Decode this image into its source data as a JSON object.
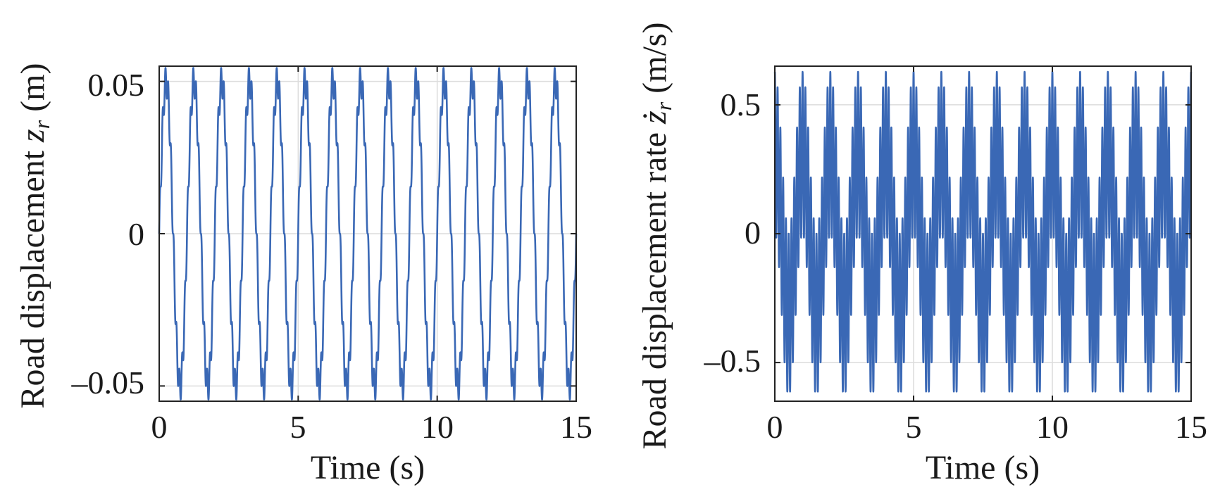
{
  "colors": {
    "series": "#3a68b5",
    "grid": "#dcdcdc",
    "axis": "#222222"
  },
  "chart_data": [
    {
      "type": "line",
      "xlabel": "Time (s)",
      "ylabel": {
        "prefix": "Road displacement ",
        "symbol": "z",
        "subscript": "r",
        "unit": " (m)"
      },
      "xlim": [
        0,
        15
      ],
      "ylim": [
        -0.055,
        0.055
      ],
      "xticks": [
        0,
        5,
        10,
        15
      ],
      "xtick_labels": [
        "0",
        "5",
        "10",
        "15"
      ],
      "yticks": [
        0.05,
        0,
        -0.05
      ],
      "ytick_labels": [
        "0.05",
        "0",
        "–0.05"
      ],
      "grid": true,
      "series": [
        {
          "signal": "z_r(t) = 0.05 sin(2π·1.0·t) + 0.005 sin(2π·10·t)",
          "sample_step": 0.002,
          "peak": 0.054,
          "dominant_frequency_hz": 1.0
        }
      ]
    },
    {
      "type": "line",
      "xlabel": "Time (s)",
      "ylabel": {
        "prefix": "Road displacement rate ",
        "symbol": "ż",
        "subscript": "r",
        "unit": " (m/s)"
      },
      "xlim": [
        0,
        15
      ],
      "ylim": [
        -0.65,
        0.65
      ],
      "xticks": [
        0,
        5,
        10,
        15
      ],
      "xtick_labels": [
        "0",
        "5",
        "10",
        "15"
      ],
      "yticks": [
        0.5,
        0,
        -0.5
      ],
      "ytick_labels": [
        "0.5",
        "0",
        "–0.5"
      ],
      "grid": true,
      "series": [
        {
          "signal": "dz_r/dt = 0.314 cos(2π·1.0·t) + 0.314 cos(2π·10·t)",
          "sample_step": 0.002,
          "peak": 0.62,
          "dominant_frequency_hz": 10.0
        }
      ]
    }
  ]
}
